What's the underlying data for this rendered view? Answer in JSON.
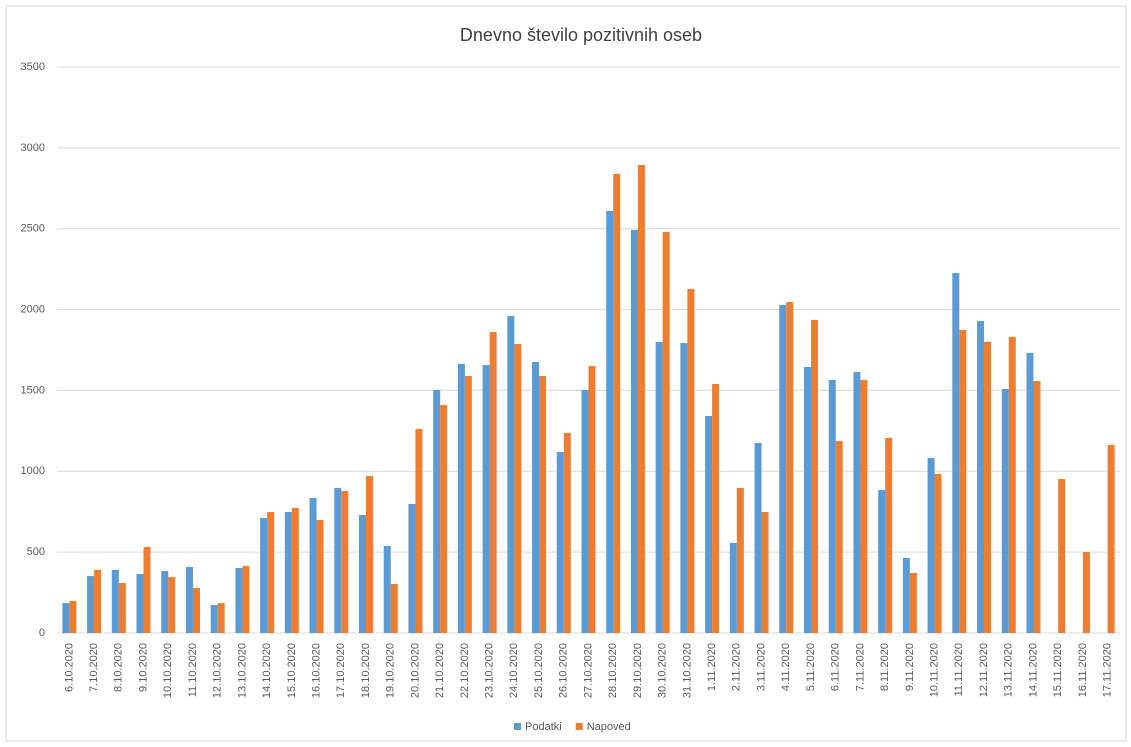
{
  "chart_data": {
    "type": "bar",
    "title": "Dnevno število pozitivnih oseb",
    "categories": [
      "6.10.2020",
      "7.10.2020",
      "8.10.2020",
      "9.10.2020",
      "10.10.2020",
      "11.10.2020",
      "12.10.2020",
      "13.10.2020",
      "14.10.2020",
      "15.10.2020",
      "16.10.2020",
      "17.10.2020",
      "18.10.2020",
      "19.10.2020",
      "20.10.2020",
      "21.10.2020",
      "22.10.2020",
      "23.10.2020",
      "24.10.2020",
      "25.10.2020",
      "26.10.2020",
      "27.10.2020",
      "28.10.2020",
      "29.10.2020",
      "30.10.2020",
      "31.10.2020",
      "1.11.2020",
      "2.11.2020",
      "3.11.2020",
      "4.11.2020",
      "5.11.2020",
      "6.11.2020",
      "7.11.2020",
      "8.11.2020",
      "9.11.2020",
      "10.11.2020",
      "11.11.2020",
      "12.11.2020",
      "13.11.2020",
      "14.11.2020",
      "15.11.2020",
      "16.11.2020",
      "17.11.2020"
    ],
    "series": [
      {
        "name": "Podatki",
        "color": "#5b9bd5",
        "values": [
          185,
          352,
          390,
          365,
          383,
          408,
          173,
          402,
          711,
          748,
          835,
          897,
          730,
          538,
          798,
          1503,
          1664,
          1657,
          1960,
          1676,
          1119,
          1503,
          2610,
          2492,
          1800,
          1793,
          1342,
          557,
          1175,
          2028,
          1645,
          1565,
          1614,
          884,
          464,
          1082,
          2226,
          1929,
          1509,
          1732,
          null,
          null,
          null
        ]
      },
      {
        "name": "Napoved",
        "color": "#ed7d31",
        "values": [
          198,
          390,
          309,
          532,
          346,
          278,
          185,
          414,
          748,
          773,
          699,
          878,
          971,
          303,
          1262,
          1410,
          1589,
          1861,
          1787,
          1589,
          1237,
          1651,
          2839,
          2894,
          2480,
          2127,
          1540,
          897,
          748,
          2047,
          1936,
          1187,
          1565,
          1206,
          371,
          983,
          1874,
          1800,
          1831,
          1558,
          952,
          501,
          1163
        ]
      }
    ],
    "ylim": [
      0,
      3500
    ],
    "yticks": [
      0,
      500,
      1000,
      1500,
      2000,
      2500,
      3000,
      3500
    ],
    "grid": true,
    "legend": "bottom"
  }
}
